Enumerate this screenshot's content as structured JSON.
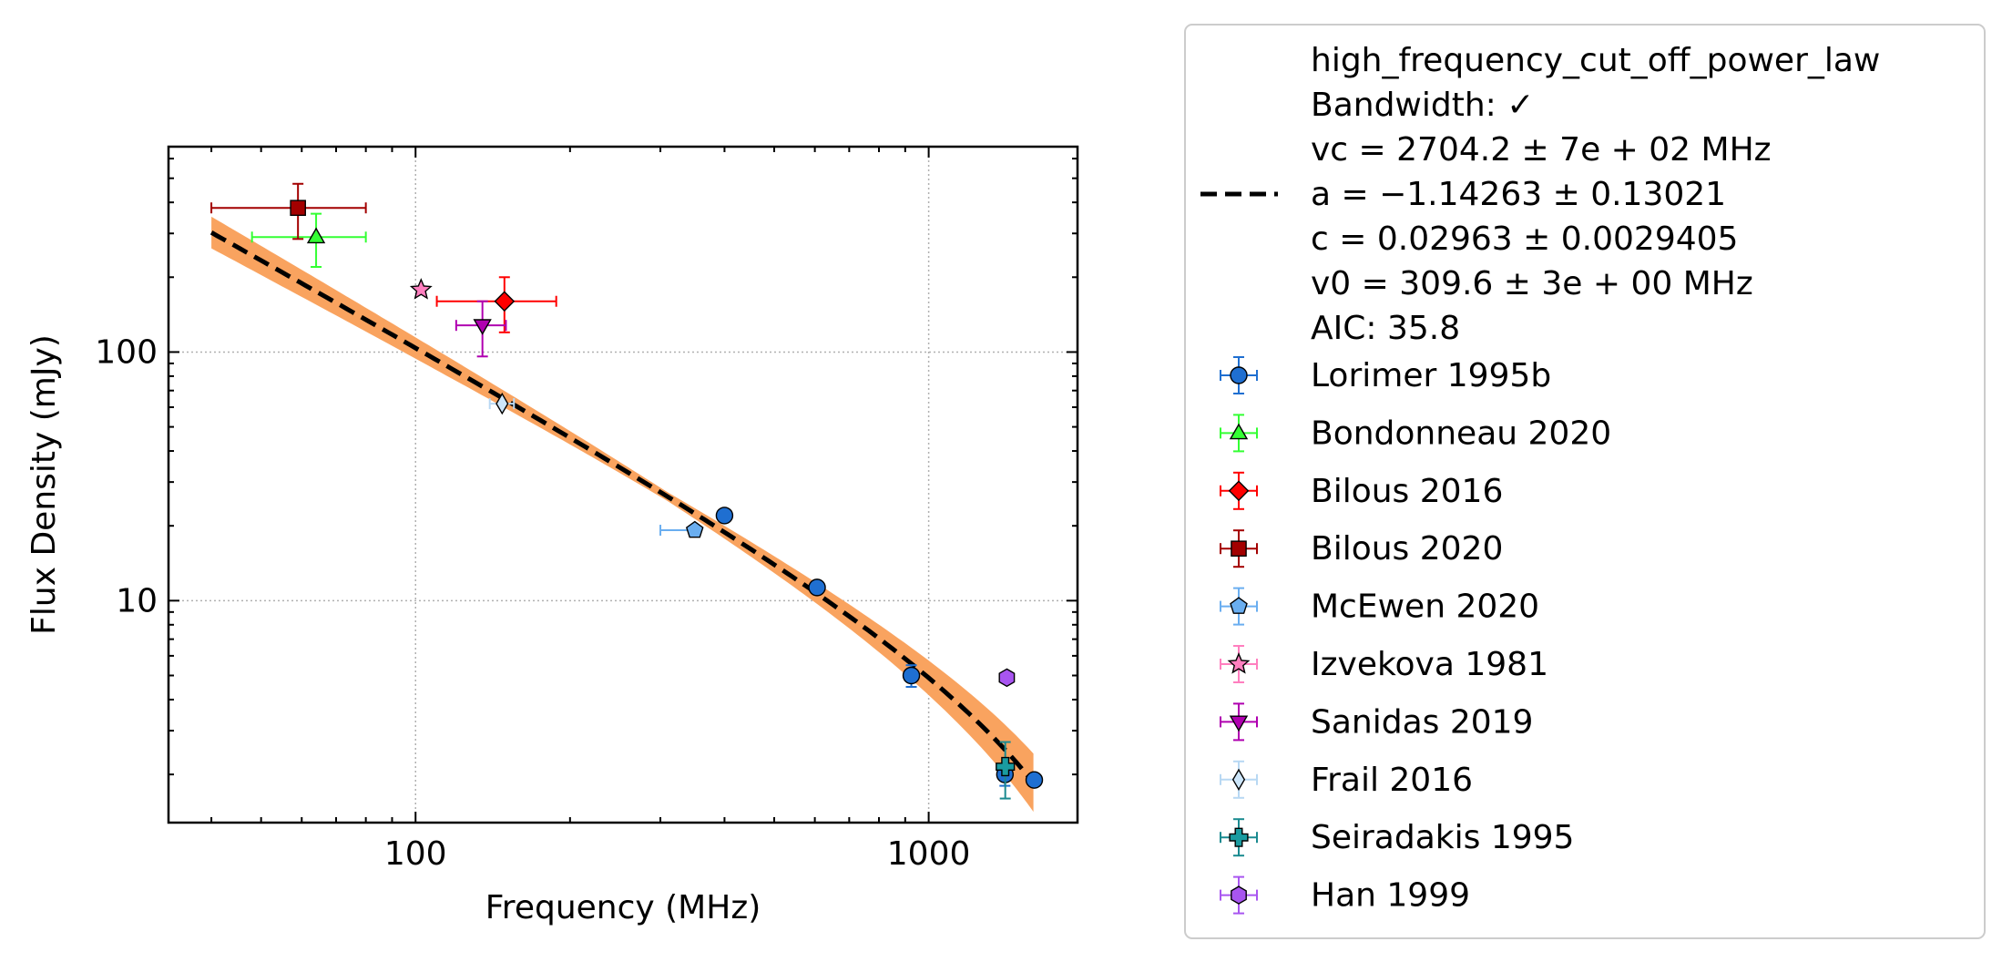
{
  "chart_data": {
    "type": "scatter",
    "title": "",
    "xlabel": "Frequency (MHz)",
    "ylabel": "Flux Density (mJy)",
    "xscale": "log",
    "yscale": "log",
    "xlim": [
      33,
      1950
    ],
    "ylim": [
      1.28,
      670
    ],
    "xticks": [
      {
        "value": 100,
        "label": "100"
      },
      {
        "value": 1000,
        "label": "1000"
      }
    ],
    "yticks": [
      {
        "value": 10,
        "label": "10"
      },
      {
        "value": 100,
        "label": "100"
      }
    ],
    "grid": true,
    "legend_position": "outside-right",
    "fit": {
      "name": "high_frequency_cut_off_power_law",
      "legend_lines": [
        "high_frequency_cut_off_power_law",
        "Bandwidth: ✓",
        "vc = 2704.2 ± 7e + 02 MHz",
        "a = −1.14263 ± 0.13021",
        "c = 0.02963 ± 0.0029405",
        "v0 = 309.6 ± 3e + 00 MHz",
        "AIC: 35.8"
      ],
      "vc": 2704.2,
      "a": -1.14263,
      "c": 0.02963,
      "v0": 309.6,
      "x_range": [
        40,
        1600
      ],
      "line_color": "#000000",
      "band_color": "#f9a35f"
    },
    "series": [
      {
        "name": "Lorimer 1995b",
        "marker": "circle",
        "color": "#1f6fd1",
        "ecolor": "#1f6fd1",
        "points": [
          {
            "x": 400,
            "y": 22
          },
          {
            "x": 606,
            "y": 11.3
          },
          {
            "x": 925,
            "y": 5.0,
            "yerr": [
              0.5,
              0.5
            ]
          },
          {
            "x": 1408,
            "y": 2.0,
            "yerr": [
              0.2,
              0.2
            ]
          },
          {
            "x": 1606,
            "y": 1.9
          }
        ]
      },
      {
        "name": "Bondonneau 2020",
        "marker": "triangle-up",
        "color": "#33ff33",
        "ecolor": "#33ff33",
        "points": [
          {
            "x": 64,
            "y": 290,
            "xerr": [
              16,
              16
            ],
            "yerr": [
              70,
              70
            ]
          }
        ]
      },
      {
        "name": "Bilous 2016",
        "marker": "diamond",
        "color": "#ff0000",
        "ecolor": "#ff0000",
        "points": [
          {
            "x": 149,
            "y": 160,
            "xerr": [
              39,
              39
            ],
            "yerr": [
              40,
              40
            ]
          }
        ]
      },
      {
        "name": "Bilous 2020",
        "marker": "square",
        "color": "#a30000",
        "ecolor": "#a30000",
        "points": [
          {
            "x": 59,
            "y": 380,
            "xerr": [
              19,
              21
            ],
            "yerr": [
              95,
              95
            ]
          }
        ]
      },
      {
        "name": "McEwen 2020",
        "marker": "pentagon",
        "color": "#6aaef0",
        "ecolor": "#6aaef0",
        "points": [
          {
            "x": 350,
            "y": 19.2,
            "xerr": [
              50,
              0
            ]
          }
        ]
      },
      {
        "name": "Izvekova 1981",
        "marker": "star",
        "color": "#ff7fbf",
        "ecolor": "#ff7fbf",
        "points": [
          {
            "x": 102.5,
            "y": 178
          }
        ]
      },
      {
        "name": "Sanidas 2019",
        "marker": "triangle-down",
        "color": "#b000b0",
        "ecolor": "#b000b0",
        "points": [
          {
            "x": 135,
            "y": 128,
            "xerr": [
              15,
              15
            ],
            "yerr": [
              32,
              32
            ]
          }
        ]
      },
      {
        "name": "Frail 2016",
        "marker": "thin-diamond",
        "color": "#cde6fa",
        "ecolor": "#b8d8f3",
        "points": [
          {
            "x": 147.5,
            "y": 62,
            "xerr": [
              8,
              8
            ]
          }
        ]
      },
      {
        "name": "Seiradakis 1995",
        "marker": "plus",
        "color": "#1a9ba0",
        "ecolor": "#1a8a90",
        "points": [
          {
            "x": 1410,
            "y": 2.15,
            "yerr": [
              0.55,
              0.55
            ]
          }
        ]
      },
      {
        "name": "Han 1999",
        "marker": "hexagon",
        "color": "#a855f0",
        "ecolor": "#a855f0",
        "points": [
          {
            "x": 1420,
            "y": 4.9
          }
        ]
      }
    ]
  }
}
